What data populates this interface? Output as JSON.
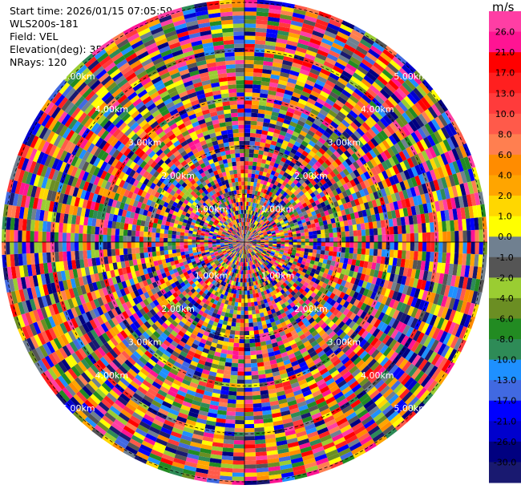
{
  "info": {
    "start_time": "Start time: 2026/01/15 07:05:59",
    "site": "WLS200s-181",
    "field": "Field: VEL",
    "elevation": "Elevation(deg): 35.00",
    "nrays": "NRays: 120"
  },
  "chart_data": {
    "type": "heatmap",
    "projection": "polar-ppi",
    "field": "VEL",
    "units": "m/s",
    "n_rays": 120,
    "range_rings_km": [
      1,
      2,
      3,
      4,
      5
    ],
    "range_ring_labels": [
      "1.00km",
      "2.00km",
      "3.00km",
      "4.00km",
      "5.00km"
    ],
    "max_range_km": 5.0,
    "colorbar": {
      "ticks": [
        "26.0",
        "21.0",
        "17.0",
        "13.0",
        "10.0",
        "8.0",
        "6.0",
        "4.0",
        "2.0",
        "1.0",
        "0.0",
        "-1.0",
        "-2.0",
        "-4.0",
        "-6.0",
        "-8.0",
        "-10.0",
        "-13.0",
        "-17.0",
        "-21.0",
        "-26.0",
        "-30.0"
      ],
      "colors": [
        "#ff3ea4",
        "#ff1493",
        "#ff0000",
        "#ff1f1f",
        "#ff3b3b",
        "#ff5a4a",
        "#ff7f50",
        "#ff8c00",
        "#ffa500",
        "#ffd700",
        "#ffff00",
        "#708090",
        "#555555",
        "#9acd32",
        "#6b8e23",
        "#228b22",
        "#2e8b57",
        "#1e90ff",
        "#4169e1",
        "#0000ff",
        "#0000cd",
        "#000080",
        "#191970"
      ]
    }
  }
}
